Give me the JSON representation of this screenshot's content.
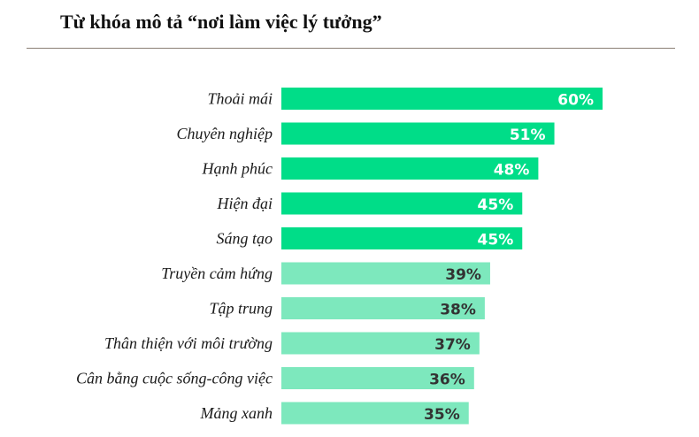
{
  "chart_data": {
    "type": "bar",
    "orientation": "horizontal",
    "title": "Từ khóa mô tả “nơi làm việc lý tưởng”",
    "xlabel": "",
    "ylabel": "",
    "categories": [
      "Thoải mái",
      "Chuyên nghiệp",
      "Hạnh phúc",
      "Hiện đại",
      "Sáng tạo",
      "Truyền cảm hứng",
      "Tập trung",
      "Thân thiện với môi trường",
      "Cân bằng cuộc sống-công việc",
      "Mảng xanh"
    ],
    "values": [
      60,
      51,
      48,
      45,
      45,
      39,
      38,
      37,
      36,
      35
    ],
    "value_labels": [
      "60%",
      "51%",
      "48%",
      "45%",
      "45%",
      "39%",
      "38%",
      "37%",
      "36%",
      "35%"
    ],
    "xlim": [
      0,
      60
    ],
    "grid": false,
    "colors": {
      "top_bar": "#00dd88",
      "other_bar": "#7de8bd",
      "top_label": "#ffffff",
      "other_label": "#333333"
    },
    "highlight_count": 5
  }
}
